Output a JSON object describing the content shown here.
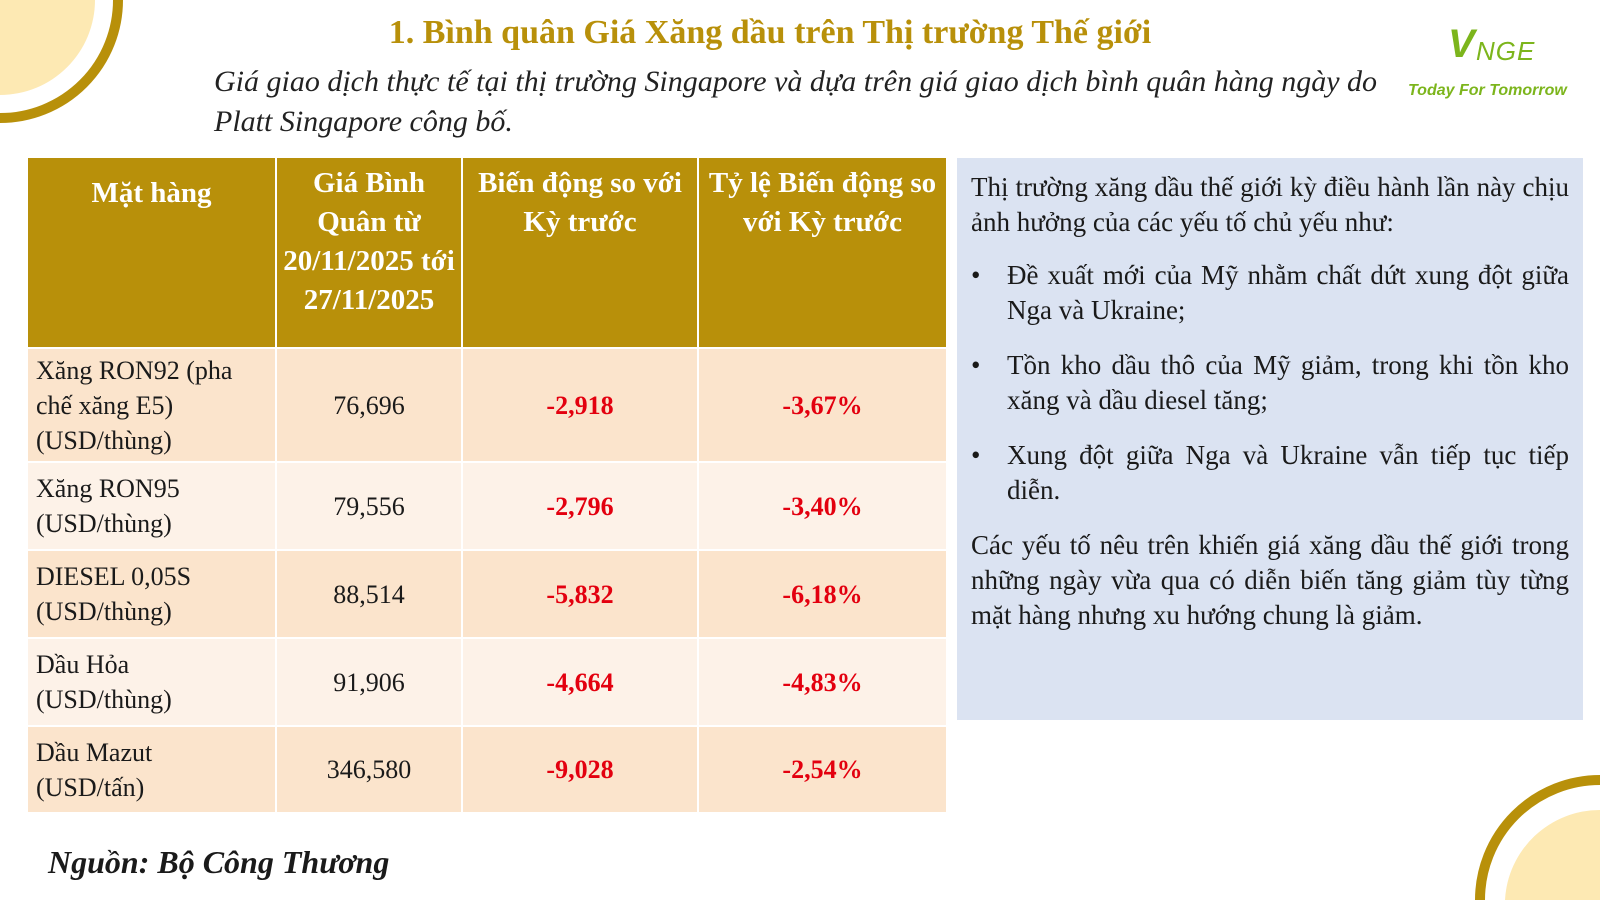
{
  "title": "1. Bình quân Giá Xăng dầu trên Thị trường Thế giới",
  "subtitle": "Giá giao dịch thực tế tại thị trường Singapore và dựa trên giá giao dịch bình quân hàng ngày do Platt Singapore công bố.",
  "logo": {
    "mark": "V",
    "text": "NGE",
    "tagline": "Today For Tomorrow"
  },
  "table": {
    "headers": [
      "Mặt hàng",
      "Giá Bình Quân từ 20/11/2025 tới 27/11/2025",
      "Biến động so với Kỳ trước",
      "Tỷ lệ Biến động so với Kỳ trước"
    ],
    "rows": [
      {
        "item": "Xăng RON92 (pha chế xăng E5) (USD/thùng)",
        "price": "76,696",
        "change": "-2,918",
        "pct": "-3,67%"
      },
      {
        "item": "Xăng RON95 (USD/thùng)",
        "price": "79,556",
        "change": "-2,796",
        "pct": "-3,40%"
      },
      {
        "item": "DIESEL 0,05S (USD/thùng)",
        "price": "88,514",
        "change": "-5,832",
        "pct": "-6,18%"
      },
      {
        "item": "Dầu Hỏa (USD/thùng)",
        "price": "91,906",
        "change": "-4,664",
        "pct": "-4,83%"
      },
      {
        "item": "Dầu Mazut (USD/tấn)",
        "price": "346,580",
        "change": "-9,028",
        "pct": "-2,54%"
      }
    ]
  },
  "source": "Nguồn: Bộ Công Thương",
  "panel": {
    "intro": "Thị trường xăng dầu thế giới kỳ điều hành lần này chịu ảnh hưởng của các yếu tố chủ yếu như:",
    "bullet_symbol": "•",
    "bullets": [
      "Đề xuất mới của Mỹ nhằm chất dứt xung đột giữa Nga và Ukraine;",
      "Tồn kho dầu thô của Mỹ giảm, trong khi tồn kho xăng và dầu diesel tăng;",
      "Xung đột giữa Nga và Ukraine vẫn tiếp tục tiếp diễn."
    ],
    "conclusion": "Các yếu tố nêu trên khiến giá xăng dầu thế giới trong những ngày vừa qua có diễn biến tăng giảm tùy từng mặt hàng nhưng xu hướng chung là giảm."
  },
  "colors": {
    "gold": "#b8900a",
    "negative": "#e3000f",
    "panel_bg": "#dbe3f2",
    "logo_green": "#7cb51c"
  }
}
